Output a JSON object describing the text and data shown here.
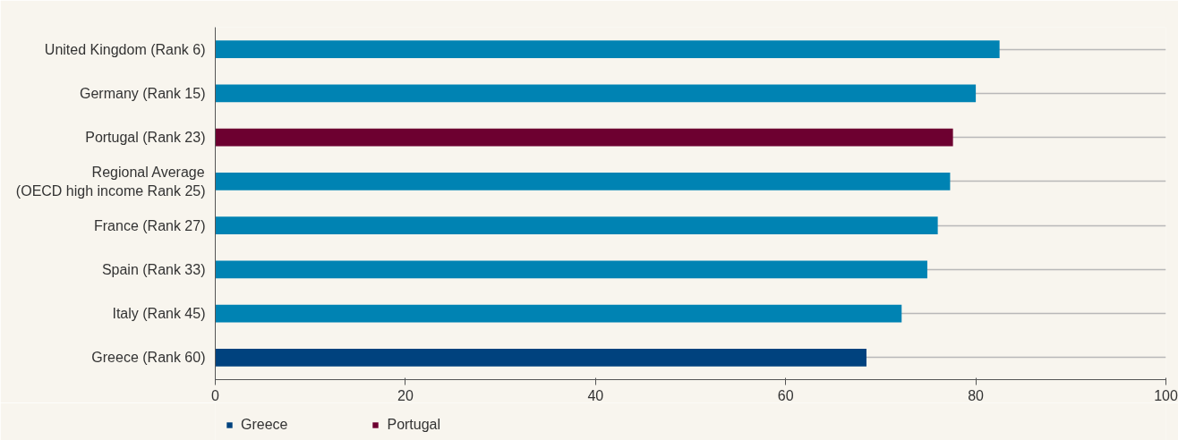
{
  "chart_data": {
    "type": "bar",
    "orientation": "horizontal",
    "categories": [
      "United Kingdom (Rank 6)",
      "Germany (Rank 15)",
      "Portugal (Rank 23)",
      "Regional Average\n(OECD high income Rank 25)",
      "France (Rank 27)",
      "Spain (Rank 33)",
      "Italy (Rank 45)",
      "Greece (Rank 60)"
    ],
    "series": [
      {
        "color": "#0083b3",
        "values": [
          82.5,
          80.0,
          null,
          77.3,
          76.0,
          74.9,
          72.2,
          null
        ]
      },
      {
        "name": "Greece",
        "color": "#00427e",
        "values": [
          null,
          null,
          null,
          null,
          null,
          null,
          null,
          68.5
        ]
      },
      {
        "name": "Portugal",
        "color": "#6d0030",
        "values": [
          null,
          null,
          77.6,
          null,
          null,
          null,
          null,
          null
        ]
      }
    ],
    "xlim": [
      0,
      100
    ],
    "xticks": [
      0,
      20,
      40,
      60,
      80,
      100
    ],
    "grid": "y",
    "legend": "bottom left"
  }
}
